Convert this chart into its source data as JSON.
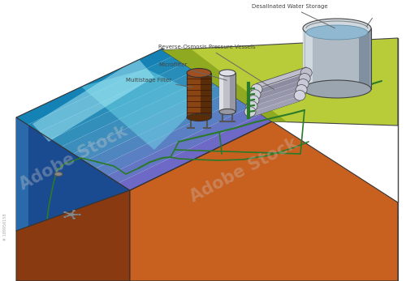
{
  "bg_color": "#ffffff",
  "labels": {
    "desalinated_water": "Desalinated Water Storage",
    "ro_vessels": "Reverse-Osmosis Pressure Vessels",
    "microfilter": "Microfilter",
    "multistage": "Multistage Filter"
  },
  "colors": {
    "ground_top": "#b8cc3a",
    "ground_top_dark": "#8faa20",
    "ground_right": "#8faa20",
    "ocean_top_teal": "#5ababa",
    "ocean_top_cyan": "#40d0e0",
    "ocean_top_light": "#a0e8f0",
    "ocean_front_top": "#58c8d0",
    "ocean_deep_blue": "#1a4a8a",
    "ocean_mid_blue": "#2060a0",
    "ocean_front_dark": "#1840a0",
    "earth_front": "#c86020",
    "earth_right": "#a04818",
    "earth_dark": "#8a3a10",
    "tank_silver": "#b0bac5",
    "tank_light": "#d0d8e0",
    "tank_dark": "#8090a0",
    "tank_water_blue": "#90b8d0",
    "multistage_brown": "#8B4513",
    "multistage_dark": "#5a2d0a",
    "multistage_light": "#a05020",
    "microfilter_gray": "#c0c0c8",
    "microfilter_light": "#e0e0e8",
    "ro_gray": "#c8cdd5",
    "ro_dark": "#9098a8",
    "green_pipe": "#2a7a2a",
    "label_dark": "#444444",
    "line_color": "#555555"
  }
}
